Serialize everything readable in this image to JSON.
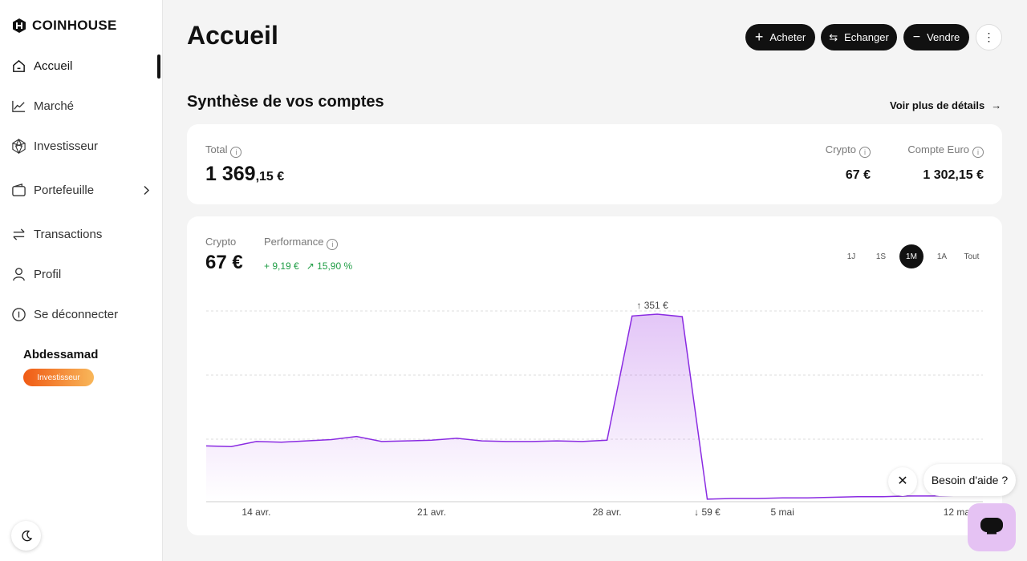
{
  "sidebar": {
    "brand": "COINHOUSE",
    "nav": [
      "Accueil",
      "Marché",
      "Investisseur",
      "Portefeuille",
      "Transactions",
      "Profil",
      "Se déconnecter"
    ],
    "user_name": "Abdessamad",
    "user_badge": "Investisseur"
  },
  "header": {
    "title": "Accueil",
    "buttons": [
      "Acheter",
      "Echanger",
      "Vendre"
    ]
  },
  "summary": {
    "title": "Synthèse de vos comptes",
    "link": "Voir plus de détails",
    "total_label": "Total",
    "total_integer": "1 369",
    "total_decimals": ",15 €",
    "crypto_label": "Crypto",
    "crypto_value": "67 €",
    "euro_label": "Compte Euro",
    "euro_value": "1 302,15 €"
  },
  "performance": {
    "crypto_label": "Crypto",
    "crypto_value": "67 €",
    "performance_label": "Performance",
    "gain": "+ 9,19 €",
    "gain_percent": "15,90 %",
    "periods": [
      "1J",
      "1S",
      "1M",
      "1A",
      "Tout"
    ],
    "active_period": "1M"
  },
  "chart_data": {
    "type": "line",
    "color": "#8a2be2",
    "categories": [
      null,
      null,
      "14 avr.",
      null,
      null,
      null,
      null,
      null,
      null,
      "21 avr.",
      null,
      null,
      null,
      null,
      null,
      null,
      "28 avr.",
      null,
      null,
      null,
      null,
      null,
      null,
      "5 mai",
      null,
      null,
      null,
      null,
      null,
      null,
      "12 mai",
      null
    ],
    "values": [
      143,
      142,
      150,
      149,
      151,
      153,
      158,
      150,
      151,
      152,
      155,
      151,
      150,
      150,
      151,
      150,
      152,
      348,
      351,
      347,
      59,
      60,
      60,
      61,
      61,
      62,
      63,
      63,
      64,
      64,
      65,
      65
    ],
    "ylim": [
      55,
      356
    ],
    "max_label": "↑ 351 €",
    "min_label": "↓ 59 €"
  },
  "help": {
    "label": "Besoin d'aide ?"
  }
}
